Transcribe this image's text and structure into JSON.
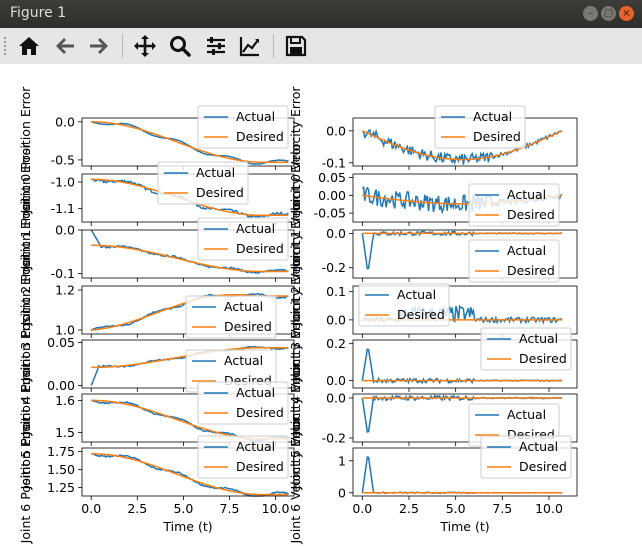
{
  "window": {
    "title": "Figure 1"
  },
  "toolbar": {
    "buttons": [
      {
        "name": "home-icon"
      },
      {
        "name": "back-arrow-icon"
      },
      {
        "name": "forward-arrow-icon"
      },
      {
        "name": "pan-move-icon"
      },
      {
        "name": "zoom-magnifier-icon"
      },
      {
        "name": "configure-subplots-icon"
      },
      {
        "name": "edit-axes-curve-icon"
      },
      {
        "name": "save-floppy-icon"
      }
    ]
  },
  "colors": {
    "actual": "#1f77b4",
    "desired": "#ff7f0e"
  },
  "chart_data": [
    {
      "type": "line",
      "column": "position",
      "joint": 0,
      "ylabel": "Joint 0 Position Error",
      "yticks": [
        0.0,
        -0.5
      ],
      "ylim": [
        -0.58,
        0.05
      ],
      "xlim": [
        -0.5,
        11.0
      ],
      "shape": "ramp",
      "start": 0.0,
      "end": -0.53,
      "noise": 0.004,
      "legend": "top-right"
    },
    {
      "type": "line",
      "column": "position",
      "joint": 1,
      "ylabel": "Joint 1 Position Error",
      "yticks": [
        -1.0,
        -1.1
      ],
      "ylim": [
        -1.15,
        -0.97
      ],
      "xlim": [
        -0.5,
        11.0
      ],
      "shape": "ramp",
      "start": -0.99,
      "end": -1.125,
      "noise": 0.005,
      "legend": "top-center"
    },
    {
      "type": "line",
      "column": "position",
      "joint": 2,
      "ylabel": "Joint 2 Position Error",
      "yticks": [
        0.0,
        -0.1
      ],
      "ylim": [
        -0.11,
        0.0
      ],
      "xlim": [
        -0.5,
        11.0
      ],
      "shape": "ramp-bump",
      "start": -0.035,
      "end": -0.095,
      "noise": 0.002,
      "legend": "top-right"
    },
    {
      "type": "line",
      "column": "position",
      "joint": 3,
      "ylabel": "Joint 3 Position Error",
      "yticks": [
        1.0,
        1.2
      ],
      "ylim": [
        0.98,
        1.22
      ],
      "xlim": [
        -0.5,
        11.0
      ],
      "shape": "rise-hump",
      "start": 1.0,
      "end": 1.17,
      "noise": 0.004,
      "legend": "bottom-right"
    },
    {
      "type": "line",
      "column": "position",
      "joint": 4,
      "ylabel": "Joint 4 Position Error",
      "yticks": [
        0.0,
        0.05
      ],
      "ylim": [
        -0.003,
        0.053
      ],
      "xlim": [
        -0.5,
        11.0
      ],
      "shape": "rise",
      "start": 0.021,
      "end": 0.044,
      "noise": 0.0008,
      "legend": "bottom-right"
    },
    {
      "type": "line",
      "column": "position",
      "joint": 5,
      "ylabel": "Joint 5 Position Error",
      "yticks": [
        1.6,
        1.5
      ],
      "ylim": [
        1.47,
        1.62
      ],
      "xlim": [
        -0.5,
        11.0
      ],
      "shape": "decay",
      "start": 1.6,
      "end": 1.48,
      "noise": 0.002,
      "legend": "top-right"
    },
    {
      "type": "line",
      "column": "position",
      "joint": 6,
      "ylabel": "Joint 6 Position Error",
      "yticks": [
        1.75,
        1.5,
        1.25
      ],
      "ylim": [
        1.13,
        1.8
      ],
      "xlim": [
        -0.5,
        11.0
      ],
      "shape": "ramp",
      "start": 1.72,
      "end": 1.15,
      "noise": 0.01,
      "legend": "top-right",
      "xticks": [
        0.0,
        2.5,
        5.0,
        7.5,
        10.0
      ],
      "xlabel": "Time (t)"
    },
    {
      "type": "line",
      "column": "velocity",
      "joint": 0,
      "ylabel": "Joint 0 Velocity Error",
      "yticks": [
        0.0,
        -0.1
      ],
      "ylim": [
        -0.11,
        0.04
      ],
      "xlim": [
        -0.5,
        11.5
      ],
      "shape": "vdip",
      "start": 0.0,
      "end": 0.0,
      "depth": -0.09,
      "noise": 0.018,
      "legend": "top-center"
    },
    {
      "type": "line",
      "column": "velocity",
      "joint": 1,
      "ylabel": "Joint 1 Velocity Error",
      "yticks": [
        0.05,
        0.0,
        -0.05
      ],
      "ylim": [
        -0.075,
        0.06
      ],
      "xlim": [
        -0.5,
        11.5
      ],
      "shape": "vwave",
      "start": 0.0,
      "end": 0.0,
      "depth": -0.03,
      "noise": 0.025,
      "legend": "bottom-right"
    },
    {
      "type": "line",
      "column": "velocity",
      "joint": 2,
      "ylabel": "Joint 2 Velocity Error",
      "yticks": [
        0.0,
        -0.2
      ],
      "ylim": [
        -0.26,
        0.02
      ],
      "xlim": [
        -0.5,
        11.5
      ],
      "shape": "spike",
      "start": 0.0,
      "end": 0.0,
      "depth": -0.23,
      "noise": 0.012,
      "legend": "bottom-right"
    },
    {
      "type": "line",
      "column": "velocity",
      "joint": 3,
      "ylabel": "Joint 3 Velocity Error",
      "yticks": [
        0.1,
        0.0
      ],
      "ylim": [
        -0.05,
        0.12
      ],
      "xlim": [
        -0.5,
        11.5
      ],
      "shape": "vhump",
      "start": 0.0,
      "end": 0.0,
      "depth": 0.02,
      "noise": 0.03,
      "legend": "top-left"
    },
    {
      "type": "line",
      "column": "velocity",
      "joint": 4,
      "ylabel": "Joint 4 Velocity Error",
      "yticks": [
        0.2,
        0.0
      ],
      "ylim": [
        -0.04,
        0.22
      ],
      "xlim": [
        -0.5,
        11.5
      ],
      "shape": "spike",
      "start": 0.0,
      "end": 0.0,
      "depth": 0.19,
      "noise": 0.012,
      "legend": "top-right"
    },
    {
      "type": "line",
      "column": "velocity",
      "joint": 5,
      "ylabel": "Joint 5 Velocity Error",
      "yticks": [
        0.0,
        -0.2
      ],
      "ylim": [
        -0.22,
        0.02
      ],
      "xlim": [
        -0.5,
        11.5
      ],
      "shape": "spike",
      "start": 0.0,
      "end": 0.0,
      "depth": -0.19,
      "noise": 0.012,
      "legend": "bottom-right"
    },
    {
      "type": "line",
      "column": "velocity",
      "joint": 6,
      "ylabel": "Joint 6 Velocity Error",
      "yticks": [
        1,
        0
      ],
      "ylim": [
        -0.1,
        1.4
      ],
      "xlim": [
        -0.5,
        11.5
      ],
      "shape": "spike",
      "start": 0.0,
      "end": 0.0,
      "depth": 1.25,
      "noise": 0.02,
      "legend": "top-right",
      "xticks": [
        0.0,
        2.5,
        5.0,
        7.5,
        10.0
      ],
      "xlabel": "Time (t)"
    }
  ],
  "legend_labels": {
    "actual": "Actual",
    "desired": "Desired"
  },
  "tick_labels": {
    "position": [
      [
        "0.0",
        "-0.5"
      ],
      [
        "-1.0",
        "-1.1"
      ],
      [
        "0.0",
        "-0.1"
      ],
      [
        "1.0",
        "1.2"
      ],
      [
        "0.00",
        "0.05"
      ],
      [
        "1.6",
        "1.5"
      ],
      [
        "1.75",
        "1.50",
        "1.25"
      ]
    ],
    "velocity": [
      [
        "0.0",
        "-0.1"
      ],
      [
        "0.05",
        "0.00",
        "-0.05"
      ],
      [
        "0.0",
        "-0.2"
      ],
      [
        "0.1",
        "0.0"
      ],
      [
        "0.2",
        "0.0"
      ],
      [
        "0.0",
        "-0.2"
      ],
      [
        "1",
        "0"
      ]
    ],
    "x": [
      "0.0",
      "2.5",
      "5.0",
      "7.5",
      "10.0"
    ]
  }
}
